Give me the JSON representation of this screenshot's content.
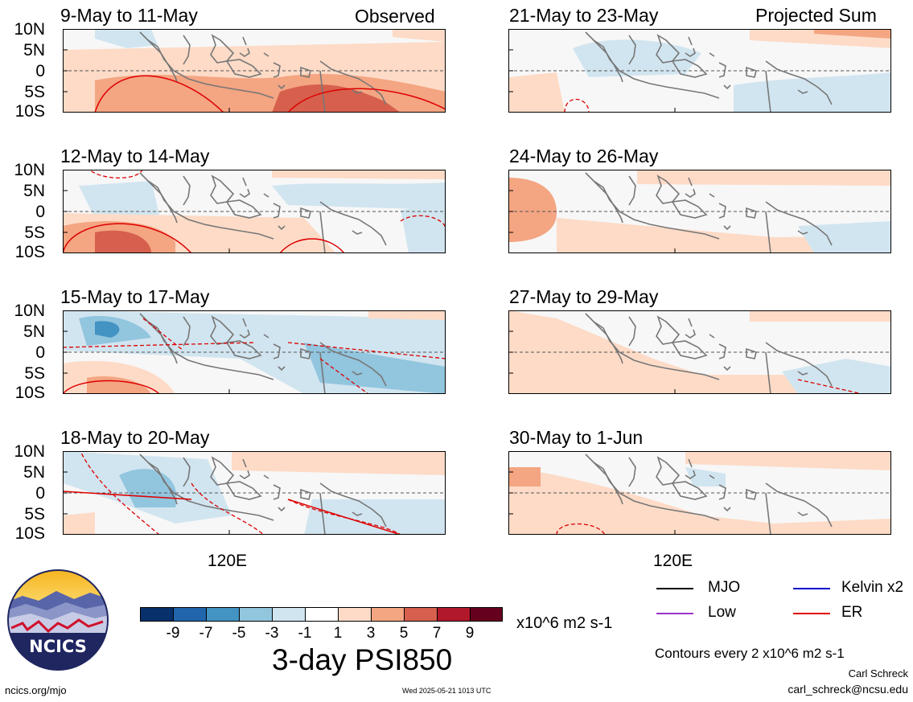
{
  "panels": [
    {
      "label": "9-May to 11-May",
      "tag": "Observed"
    },
    {
      "label": "21-May to 23-May",
      "tag": "Projected Sum"
    },
    {
      "label": "12-May to 14-May",
      "tag": ""
    },
    {
      "label": "24-May to 26-May",
      "tag": ""
    },
    {
      "label": "15-May to 17-May",
      "tag": ""
    },
    {
      "label": "27-May to 29-May",
      "tag": ""
    },
    {
      "label": "18-May to 20-May",
      "tag": ""
    },
    {
      "label": "30-May to 1-Jun",
      "tag": ""
    }
  ],
  "lat_ticks": [
    "10N",
    "5N",
    "0",
    "5S",
    "10S"
  ],
  "lon_tick": "120E",
  "colorbar": {
    "colors": [
      "#08306b",
      "#2166ac",
      "#4393c3",
      "#92c5de",
      "#d1e5f0",
      "#ffffff",
      "#fddbc7",
      "#f4a582",
      "#d6604d",
      "#b2182b",
      "#67001f"
    ],
    "ticks": [
      "-9",
      "-7",
      "-5",
      "-3",
      "-1",
      "1",
      "3",
      "5",
      "7",
      "9"
    ],
    "units": "x10^6 m2 s-1",
    "title": "3-day PSI850"
  },
  "legend": [
    {
      "label": "MJO",
      "color": "#000000"
    },
    {
      "label": "Kelvin x2",
      "color": "#0000cc"
    },
    {
      "label": "Low",
      "color": "#9933cc"
    },
    {
      "label": "ER",
      "color": "#dd0000"
    }
  ],
  "contours_note": "Contours every 2 x10^6 m2 s-1",
  "author": "Carl Schreck",
  "email": "carl_schreck@ncsu.edu",
  "url": "ncics.org/mjo",
  "timestamp": "Wed 2025-05-21 1013 UTC",
  "logo_text": "NCICS"
}
